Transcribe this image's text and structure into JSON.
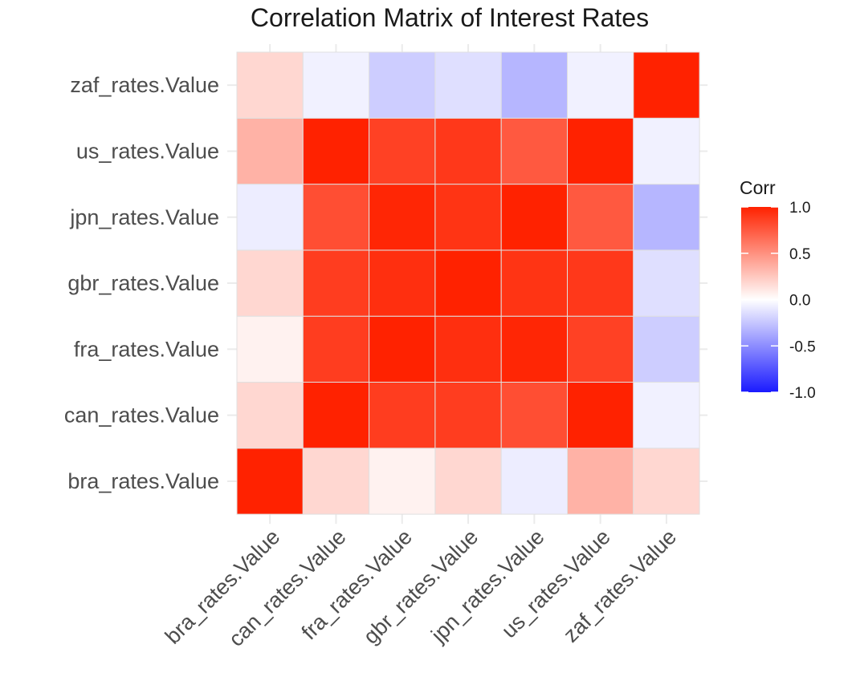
{
  "chart_data": {
    "type": "heatmap",
    "title": "Correlation Matrix of Interest Rates",
    "x_categories": [
      "bra_rates.Value",
      "can_rates.Value",
      "fra_rates.Value",
      "gbr_rates.Value",
      "jpn_rates.Value",
      "us_rates.Value",
      "zaf_rates.Value"
    ],
    "y_categories": [
      "bra_rates.Value",
      "can_rates.Value",
      "fra_rates.Value",
      "gbr_rates.Value",
      "jpn_rates.Value",
      "us_rates.Value",
      "zaf_rates.Value"
    ],
    "values": [
      [
        1.0,
        0.18,
        0.06,
        0.18,
        -0.08,
        0.35,
        0.18
      ],
      [
        0.18,
        1.0,
        0.88,
        0.88,
        0.8,
        1.0,
        -0.06
      ],
      [
        0.06,
        0.88,
        1.0,
        0.94,
        0.98,
        0.86,
        -0.22
      ],
      [
        0.18,
        0.88,
        0.94,
        1.0,
        0.92,
        0.9,
        -0.14
      ],
      [
        -0.08,
        0.8,
        0.98,
        0.92,
        1.0,
        0.75,
        -0.32
      ],
      [
        0.35,
        1.0,
        0.86,
        0.9,
        0.75,
        1.0,
        -0.06
      ],
      [
        0.18,
        -0.06,
        -0.22,
        -0.14,
        -0.32,
        -0.06,
        1.0
      ]
    ],
    "legend": {
      "title": "Corr",
      "ticks": [
        1.0,
        0.5,
        0.0,
        -0.5,
        -1.0
      ],
      "tick_labels": [
        "1.0",
        "0.5",
        "0.0",
        "-0.5",
        "-1.0"
      ],
      "position": "right"
    },
    "colors": {
      "low": "#1a1aff",
      "mid": "#ffffff",
      "high": "#ff2200"
    },
    "value_range": [
      -1,
      1
    ],
    "grid": true
  }
}
